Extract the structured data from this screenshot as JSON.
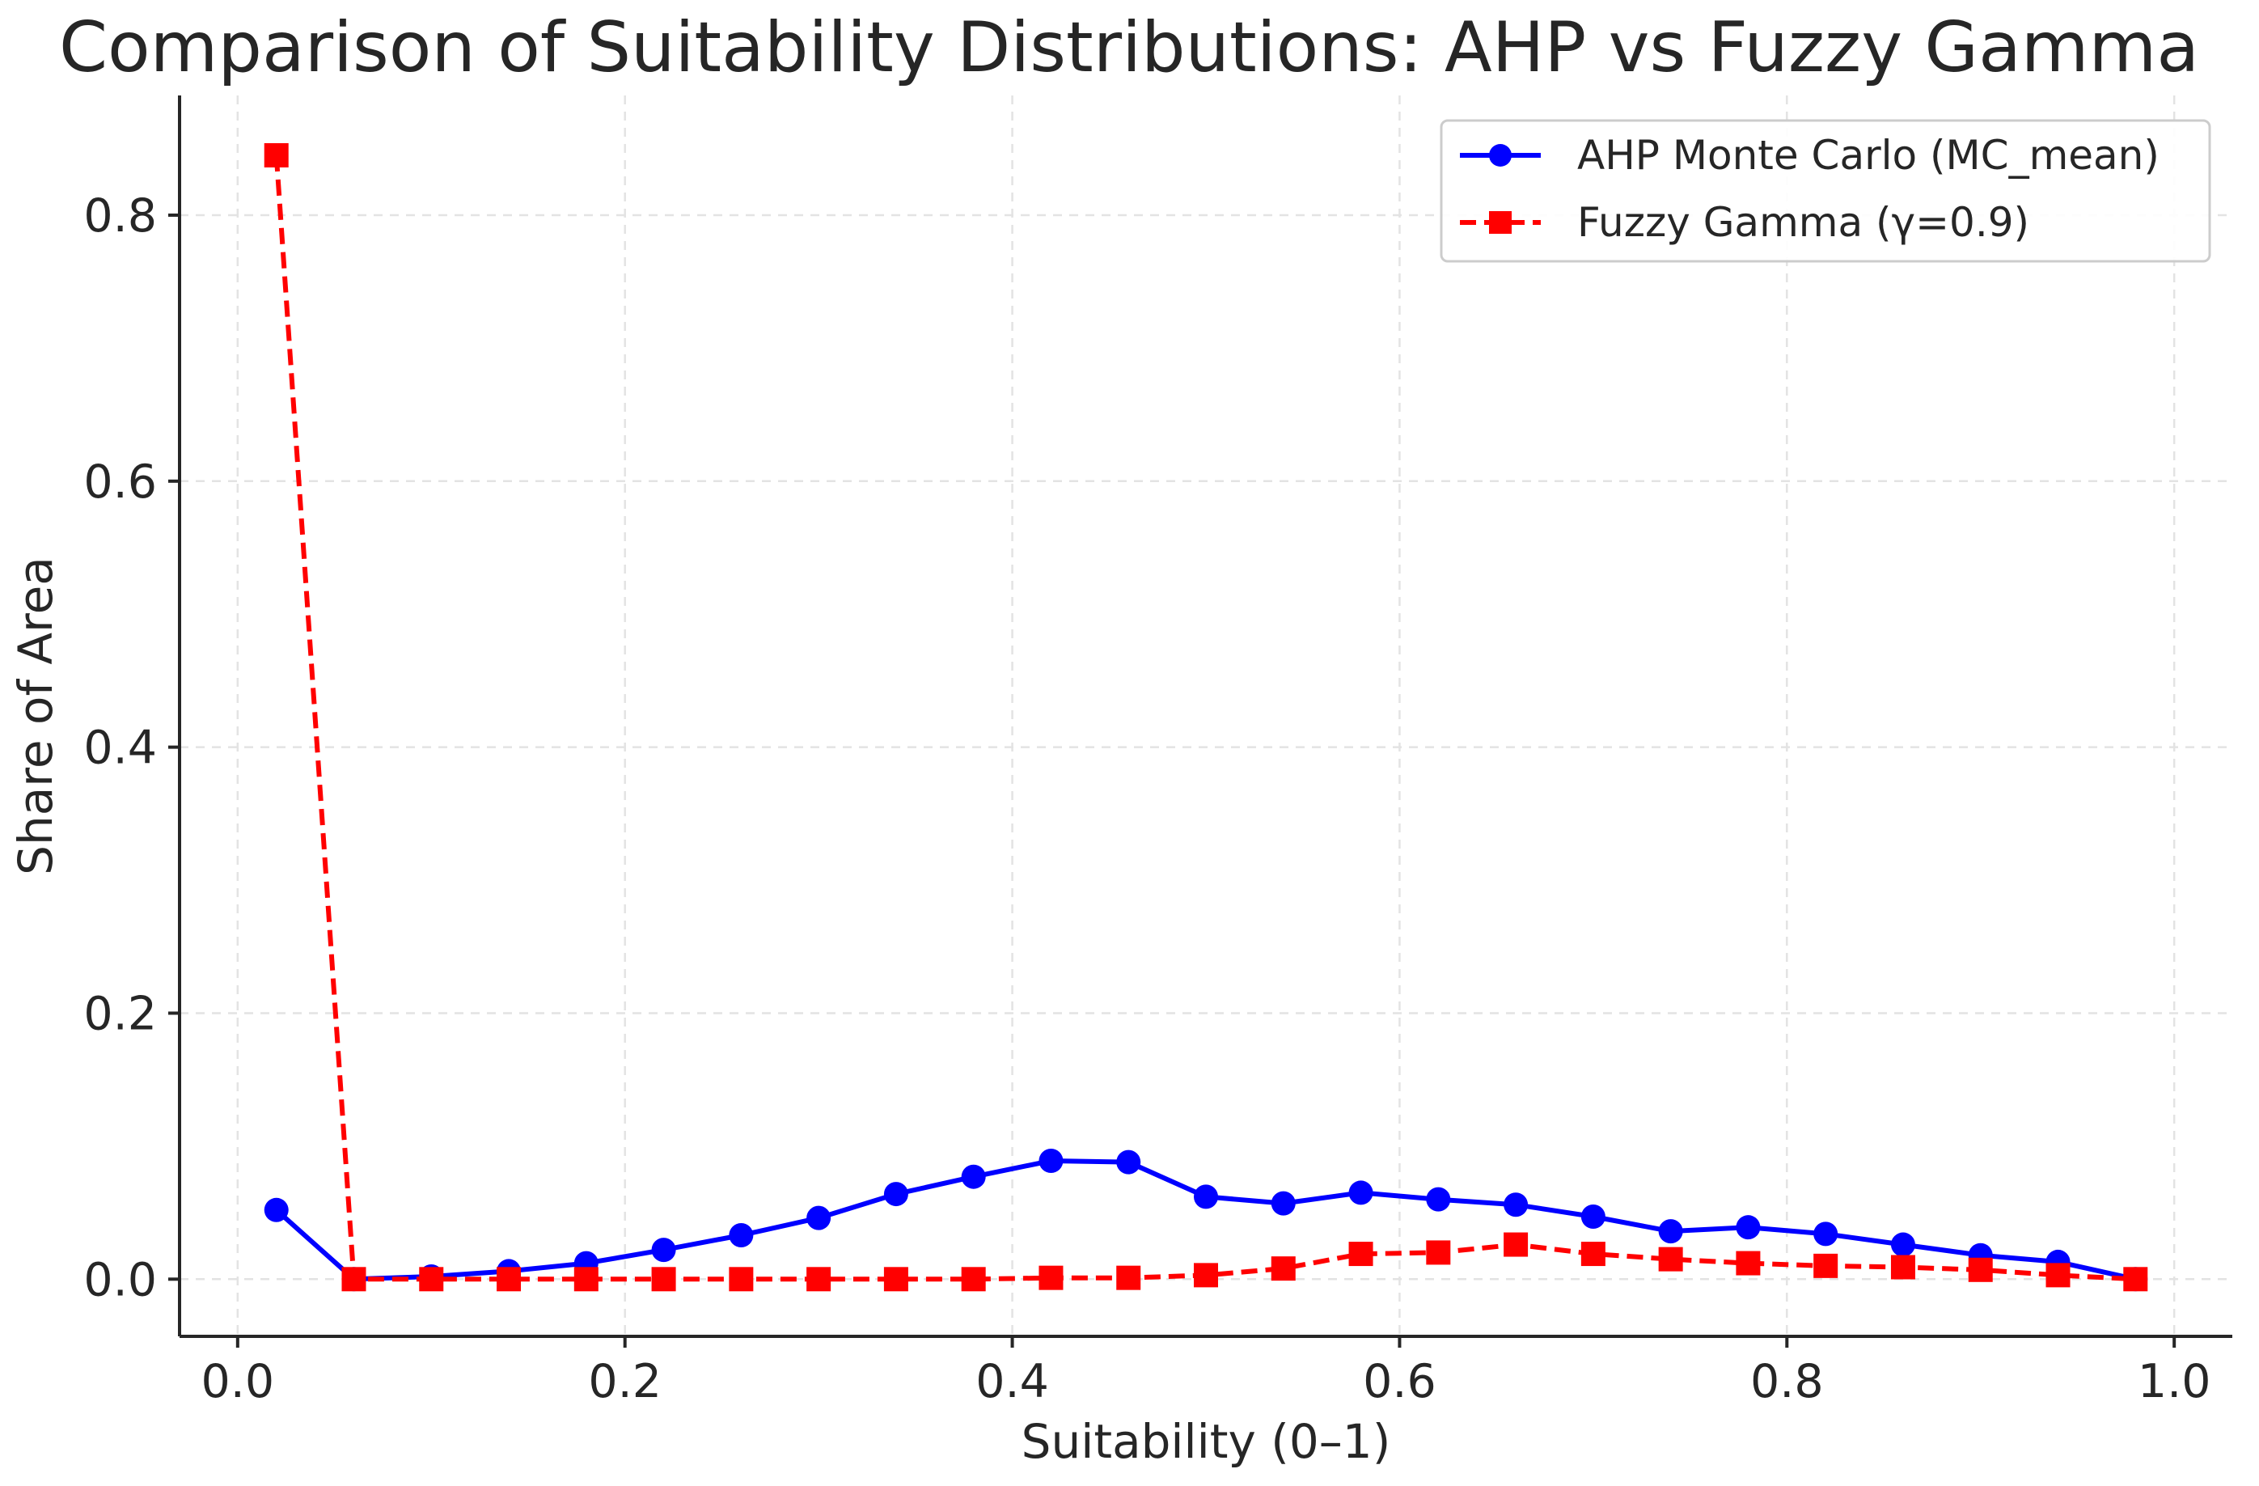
{
  "chart_data": {
    "type": "line",
    "title": "Comparison of Suitability Distributions: AHP vs Fuzzy Gamma",
    "xlabel": "Suitability (0–1)",
    "ylabel": "Share of Area",
    "xlim": [
      -0.03,
      1.03
    ],
    "ylim": [
      -0.043,
      0.89
    ],
    "xticks": [
      0.0,
      0.2,
      0.4,
      0.6,
      0.8,
      1.0
    ],
    "xtick_labels": [
      "0.0",
      "0.2",
      "0.4",
      "0.6",
      "0.8",
      "1.0"
    ],
    "yticks": [
      0.0,
      0.2,
      0.4,
      0.6,
      0.8
    ],
    "ytick_labels": [
      "0.0",
      "0.2",
      "0.4",
      "0.6",
      "0.8"
    ],
    "grid": true,
    "legend_position": "top-right",
    "x": [
      0.02,
      0.06,
      0.1,
      0.14,
      0.18,
      0.22,
      0.26,
      0.3,
      0.34,
      0.38,
      0.42,
      0.46,
      0.5,
      0.54,
      0.58,
      0.62,
      0.66,
      0.7,
      0.74,
      0.78,
      0.82,
      0.86,
      0.9,
      0.94,
      0.98
    ],
    "series": [
      {
        "name": "AHP Monte Carlo (MC_mean)",
        "color": "#0000ff",
        "marker": "circle",
        "line_style": "solid",
        "values": [
          0.052,
          0.0,
          0.002,
          0.006,
          0.012,
          0.022,
          0.033,
          0.046,
          0.064,
          0.077,
          0.089,
          0.088,
          0.062,
          0.057,
          0.065,
          0.06,
          0.056,
          0.047,
          0.036,
          0.039,
          0.034,
          0.026,
          0.018,
          0.013,
          0.0
        ]
      },
      {
        "name": "Fuzzy Gamma (γ=0.9)",
        "color": "#ff0000",
        "marker": "square",
        "line_style": "dashed",
        "values": [
          0.845,
          0.0,
          0.0,
          0.0,
          0.0,
          0.0,
          0.0,
          0.0,
          0.0,
          0.0,
          0.001,
          0.001,
          0.003,
          0.008,
          0.019,
          0.02,
          0.026,
          0.019,
          0.015,
          0.012,
          0.01,
          0.009,
          0.007,
          0.003,
          0.0
        ]
      }
    ]
  }
}
